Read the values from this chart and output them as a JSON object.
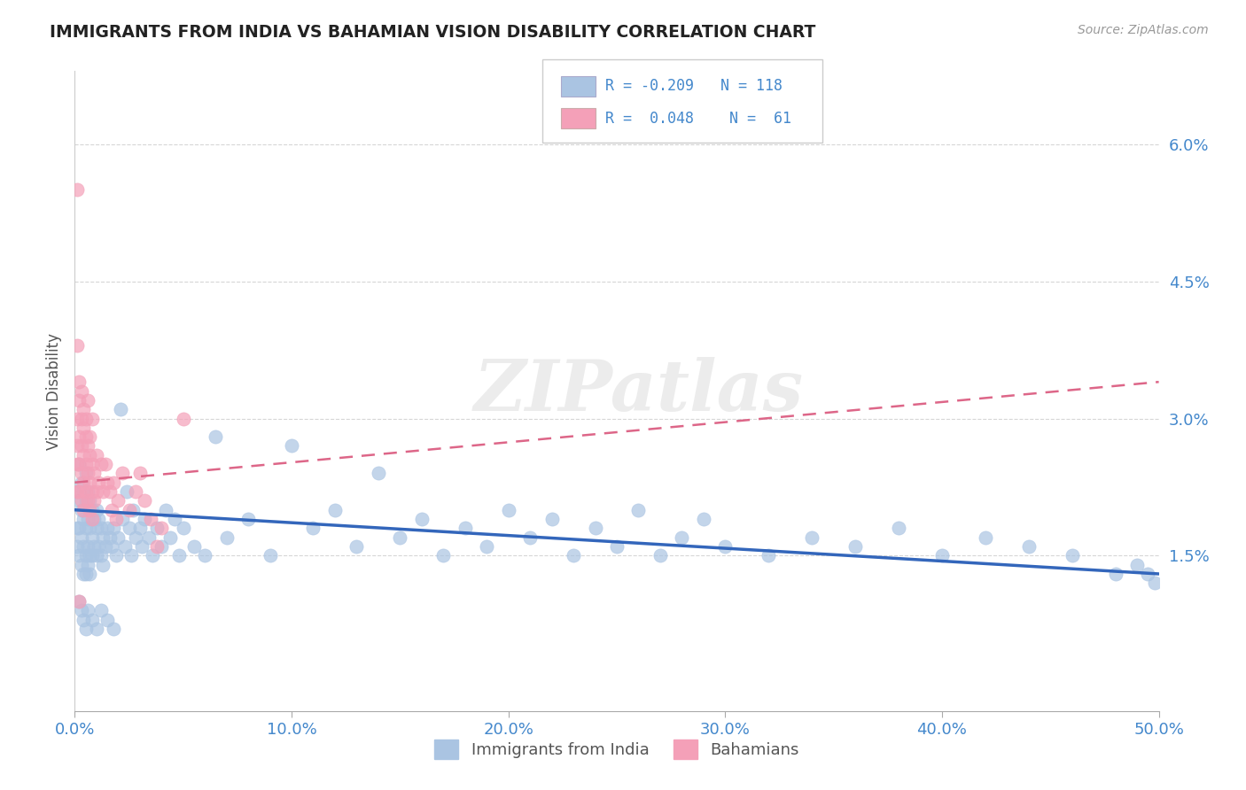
{
  "title": "IMMIGRANTS FROM INDIA VS BAHAMIAN VISION DISABILITY CORRELATION CHART",
  "source": "Source: ZipAtlas.com",
  "xlabel_blue": "Immigrants from India",
  "xlabel_pink": "Bahamians",
  "ylabel": "Vision Disability",
  "x_min": 0.0,
  "x_max": 0.5,
  "y_min": -0.002,
  "y_max": 0.068,
  "y_ticks": [
    0.015,
    0.03,
    0.045,
    0.06
  ],
  "y_tick_labels": [
    "1.5%",
    "3.0%",
    "4.5%",
    "6.0%"
  ],
  "x_ticks": [
    0.0,
    0.1,
    0.2,
    0.3,
    0.4,
    0.5
  ],
  "x_tick_labels": [
    "0.0%",
    "10.0%",
    "20.0%",
    "30.0%",
    "40.0%",
    "50.0%"
  ],
  "legend_R_blue": "-0.209",
  "legend_N_blue": "118",
  "legend_R_pink": "0.048",
  "legend_N_pink": "61",
  "blue_color": "#aac4e2",
  "pink_color": "#f4a0b8",
  "trend_blue_color": "#3366bb",
  "trend_pink_color": "#dd6688",
  "watermark": "ZIPatlas",
  "background_color": "#ffffff",
  "grid_color": "#cccccc",
  "title_color": "#222222",
  "axis_label_color": "#4488cc",
  "blue_scatter_x": [
    0.001,
    0.001,
    0.001,
    0.002,
    0.002,
    0.002,
    0.002,
    0.003,
    0.003,
    0.003,
    0.003,
    0.004,
    0.004,
    0.004,
    0.004,
    0.005,
    0.005,
    0.005,
    0.005,
    0.005,
    0.006,
    0.006,
    0.006,
    0.006,
    0.007,
    0.007,
    0.007,
    0.007,
    0.008,
    0.008,
    0.008,
    0.009,
    0.009,
    0.01,
    0.01,
    0.01,
    0.011,
    0.011,
    0.012,
    0.012,
    0.013,
    0.013,
    0.014,
    0.015,
    0.016,
    0.017,
    0.018,
    0.019,
    0.02,
    0.021,
    0.022,
    0.023,
    0.024,
    0.025,
    0.026,
    0.027,
    0.028,
    0.03,
    0.031,
    0.032,
    0.034,
    0.036,
    0.038,
    0.04,
    0.042,
    0.044,
    0.046,
    0.048,
    0.05,
    0.055,
    0.06,
    0.065,
    0.07,
    0.08,
    0.09,
    0.1,
    0.11,
    0.12,
    0.13,
    0.14,
    0.15,
    0.16,
    0.17,
    0.18,
    0.19,
    0.2,
    0.21,
    0.22,
    0.23,
    0.24,
    0.25,
    0.26,
    0.27,
    0.28,
    0.29,
    0.3,
    0.32,
    0.34,
    0.36,
    0.38,
    0.4,
    0.42,
    0.44,
    0.46,
    0.48,
    0.49,
    0.495,
    0.498,
    0.002,
    0.003,
    0.004,
    0.005,
    0.006,
    0.008,
    0.01,
    0.012,
    0.015,
    0.018
  ],
  "blue_scatter_y": [
    0.022,
    0.018,
    0.016,
    0.025,
    0.021,
    0.018,
    0.015,
    0.023,
    0.02,
    0.017,
    0.014,
    0.022,
    0.019,
    0.016,
    0.013,
    0.024,
    0.021,
    0.018,
    0.015,
    0.013,
    0.022,
    0.019,
    0.016,
    0.014,
    0.021,
    0.018,
    0.015,
    0.013,
    0.02,
    0.017,
    0.015,
    0.019,
    0.016,
    0.02,
    0.018,
    0.015,
    0.019,
    0.016,
    0.018,
    0.015,
    0.017,
    0.014,
    0.016,
    0.018,
    0.017,
    0.016,
    0.018,
    0.015,
    0.017,
    0.031,
    0.019,
    0.016,
    0.022,
    0.018,
    0.015,
    0.02,
    0.017,
    0.018,
    0.016,
    0.019,
    0.017,
    0.015,
    0.018,
    0.016,
    0.02,
    0.017,
    0.019,
    0.015,
    0.018,
    0.016,
    0.015,
    0.028,
    0.017,
    0.019,
    0.015,
    0.027,
    0.018,
    0.02,
    0.016,
    0.024,
    0.017,
    0.019,
    0.015,
    0.018,
    0.016,
    0.02,
    0.017,
    0.019,
    0.015,
    0.018,
    0.016,
    0.02,
    0.015,
    0.017,
    0.019,
    0.016,
    0.015,
    0.017,
    0.016,
    0.018,
    0.015,
    0.017,
    0.016,
    0.015,
    0.013,
    0.014,
    0.013,
    0.012,
    0.01,
    0.009,
    0.008,
    0.007,
    0.009,
    0.008,
    0.007,
    0.009,
    0.008,
    0.007
  ],
  "pink_scatter_x": [
    0.001,
    0.001,
    0.001,
    0.001,
    0.002,
    0.002,
    0.002,
    0.002,
    0.003,
    0.003,
    0.003,
    0.003,
    0.004,
    0.004,
    0.004,
    0.004,
    0.005,
    0.005,
    0.005,
    0.006,
    0.006,
    0.006,
    0.007,
    0.007,
    0.007,
    0.008,
    0.008,
    0.008,
    0.009,
    0.009,
    0.01,
    0.01,
    0.011,
    0.012,
    0.013,
    0.014,
    0.015,
    0.016,
    0.017,
    0.018,
    0.019,
    0.02,
    0.022,
    0.025,
    0.028,
    0.03,
    0.032,
    0.035,
    0.038,
    0.04,
    0.001,
    0.002,
    0.003,
    0.004,
    0.005,
    0.006,
    0.007,
    0.008,
    0.001,
    0.002,
    0.05
  ],
  "pink_scatter_y": [
    0.03,
    0.027,
    0.025,
    0.022,
    0.032,
    0.028,
    0.025,
    0.022,
    0.03,
    0.027,
    0.024,
    0.021,
    0.029,
    0.026,
    0.023,
    0.02,
    0.028,
    0.025,
    0.022,
    0.027,
    0.024,
    0.021,
    0.026,
    0.023,
    0.02,
    0.025,
    0.022,
    0.019,
    0.024,
    0.021,
    0.026,
    0.022,
    0.023,
    0.025,
    0.022,
    0.025,
    0.023,
    0.022,
    0.02,
    0.023,
    0.019,
    0.021,
    0.024,
    0.02,
    0.022,
    0.024,
    0.021,
    0.019,
    0.016,
    0.018,
    0.038,
    0.034,
    0.033,
    0.031,
    0.03,
    0.032,
    0.028,
    0.03,
    0.055,
    0.01,
    0.03
  ],
  "trend_blue_start_x": 0.0,
  "trend_blue_end_x": 0.5,
  "trend_blue_start_y": 0.02,
  "trend_blue_end_y": 0.013,
  "trend_pink_start_x": 0.0,
  "trend_pink_end_x": 0.5,
  "trend_pink_start_y": 0.023,
  "trend_pink_end_y": 0.034
}
